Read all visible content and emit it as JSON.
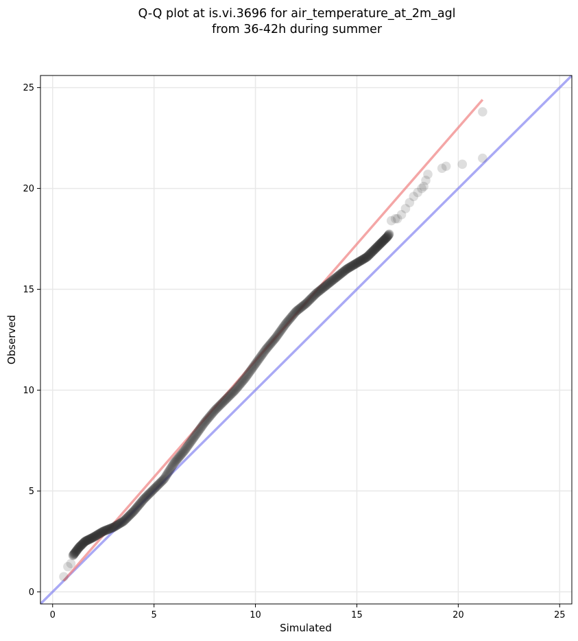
{
  "chart_data": {
    "type": "scatter",
    "title_line1": "Q-Q plot at is.vi.3696 for air_temperature_at_2m_agl",
    "title_line2": "from 36-42h during summer",
    "xlabel": "Simulated",
    "ylabel": "Observed",
    "xlim": [
      -0.6,
      25.6
    ],
    "ylim": [
      -0.6,
      25.6
    ],
    "xticks": [
      0,
      5,
      10,
      15,
      20,
      25
    ],
    "yticks": [
      0,
      5,
      10,
      15,
      20,
      25
    ],
    "grid": true,
    "colors": {
      "points": "#333333",
      "fit_line": "#f08080",
      "identity_line": "#7b7bef",
      "grid": "#e8e8e8"
    },
    "fit_line": {
      "x": [
        0.55,
        21.2
      ],
      "y": [
        0.55,
        24.4
      ]
    },
    "identity_line": {
      "x": [
        -0.6,
        25.6
      ],
      "y": [
        -0.6,
        25.6
      ]
    },
    "quantile_curve": {
      "x": [
        0.55,
        0.8,
        1.0,
        1.3,
        1.6,
        2.0,
        2.5,
        3.0,
        3.5,
        4.0,
        4.5,
        5.0,
        5.5,
        6.0,
        6.5,
        7.0,
        7.5,
        8.0,
        8.5,
        9.0,
        9.5,
        10.0,
        10.5,
        11.0,
        11.5,
        12.0,
        12.5,
        13.0,
        13.5,
        14.0,
        14.5,
        15.0,
        15.5,
        16.0,
        16.5,
        17.0,
        17.5,
        18.0,
        18.4
      ],
      "y": [
        0.75,
        1.3,
        1.8,
        2.2,
        2.5,
        2.7,
        3.0,
        3.2,
        3.5,
        4.0,
        4.6,
        5.1,
        5.6,
        6.4,
        7.0,
        7.7,
        8.4,
        9.0,
        9.5,
        10.0,
        10.6,
        11.3,
        12.0,
        12.6,
        13.3,
        13.9,
        14.3,
        14.8,
        15.2,
        15.6,
        16.0,
        16.3,
        16.6,
        17.1,
        17.6,
        18.3,
        18.6,
        19.5,
        20.2
      ]
    },
    "sparse_points": {
      "x": [
        0.55,
        0.75,
        0.9,
        16.7,
        16.9,
        17.0,
        17.2,
        17.4,
        17.6,
        17.8,
        18.0,
        18.2,
        18.3,
        18.4,
        18.5,
        19.2,
        19.4,
        20.2,
        21.2,
        21.2
      ],
      "y": [
        0.75,
        1.25,
        1.4,
        18.4,
        18.5,
        18.5,
        18.7,
        19.0,
        19.3,
        19.6,
        19.8,
        20.0,
        20.1,
        20.4,
        20.7,
        21.0,
        21.1,
        21.2,
        21.5,
        23.8
      ]
    }
  }
}
